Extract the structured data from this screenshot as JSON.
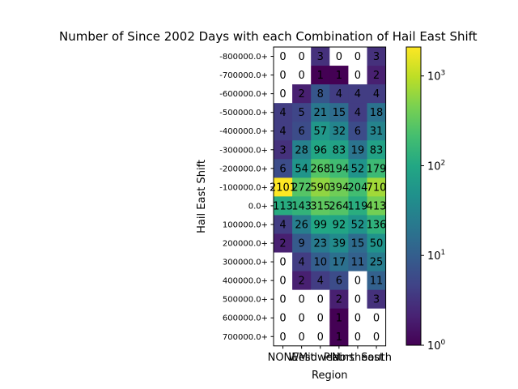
{
  "chart_data": {
    "type": "heatmap",
    "title": "Number of Since 2002 Days with each Combination of Hail East Shift",
    "xlabel": "Region",
    "ylabel": "Hail East Shift",
    "x_categories": [
      "NONE",
      "West",
      "Midwest",
      "Plains",
      "Northeast",
      "South"
    ],
    "y_categories": [
      "-800000.0+",
      "-700000.0+",
      "-600000.0+",
      "-500000.0+",
      "-400000.0+",
      "-300000.0+",
      "-200000.0+",
      "-100000.0+",
      "0.0+",
      "100000.0+",
      "200000.0+",
      "300000.0+",
      "400000.0+",
      "500000.0+",
      "600000.0+",
      "700000.0+"
    ],
    "values": [
      [
        0,
        0,
        3,
        0,
        0,
        3
      ],
      [
        0,
        0,
        1,
        1,
        0,
        2
      ],
      [
        0,
        2,
        8,
        4,
        4,
        4
      ],
      [
        4,
        5,
        21,
        15,
        4,
        18
      ],
      [
        4,
        6,
        57,
        32,
        6,
        31
      ],
      [
        3,
        28,
        96,
        83,
        19,
        83
      ],
      [
        6,
        54,
        268,
        194,
        52,
        179
      ],
      [
        2101,
        272,
        590,
        394,
        204,
        710
      ],
      [
        113,
        143,
        315,
        264,
        119,
        413
      ],
      [
        4,
        26,
        99,
        92,
        52,
        136
      ],
      [
        2,
        9,
        23,
        39,
        15,
        50
      ],
      [
        0,
        4,
        10,
        17,
        11,
        25
      ],
      [
        0,
        2,
        4,
        6,
        0,
        11
      ],
      [
        0,
        0,
        0,
        2,
        0,
        3
      ],
      [
        0,
        0,
        0,
        1,
        0,
        0
      ],
      [
        0,
        0,
        0,
        1,
        0,
        0
      ]
    ],
    "colorbar": {
      "scale": "log",
      "colormap": "viridis",
      "vmin": 1,
      "vmax": 2101,
      "tick_values": [
        1,
        10,
        100,
        1000
      ],
      "tick_labels": [
        "10",
        "10",
        "10",
        "10"
      ],
      "tick_exponents": [
        "0",
        "1",
        "2",
        "3"
      ]
    },
    "zero_cell_color": "#ffffff"
  }
}
